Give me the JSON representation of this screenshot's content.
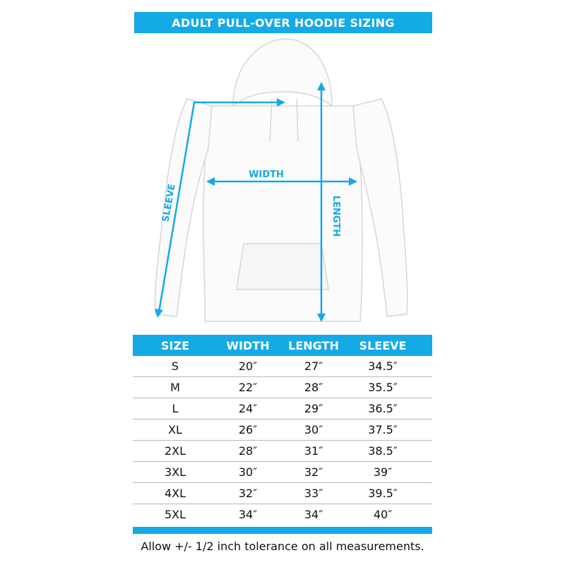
{
  "title": "ADULT PULL-OVER HOODIE SIZING",
  "diagram_labels": {
    "width": "WIDTH",
    "length": "LENGTH",
    "sleeve": "SLEEVE"
  },
  "table": {
    "headers": [
      "SIZE",
      "WIDTH",
      "LENGTH",
      "SLEEVE"
    ],
    "rows": [
      [
        "S",
        "20″",
        "27″",
        "34.5″"
      ],
      [
        "M",
        "22″",
        "28″",
        "35.5″"
      ],
      [
        "L",
        "24″",
        "29″",
        "36.5″"
      ],
      [
        "XL",
        "26″",
        "30″",
        "37.5″"
      ],
      [
        "2XL",
        "28″",
        "31″",
        "38.5″"
      ],
      [
        "3XL",
        "30″",
        "32″",
        "39″"
      ],
      [
        "4XL",
        "32″",
        "33″",
        "39.5″"
      ],
      [
        "5XL",
        "34″",
        "34″",
        "40″"
      ]
    ]
  },
  "footnote": "Allow +/- 1/2 inch tolerance on all measurements.",
  "colors": {
    "accent": "#14aae6"
  }
}
